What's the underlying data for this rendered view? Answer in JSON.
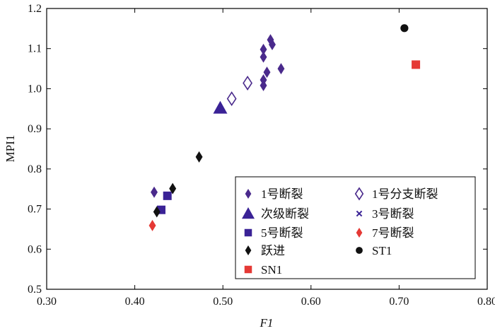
{
  "chart_data": {
    "type": "scatter",
    "xlabel": "F1",
    "ylabel": "MPI1",
    "xlim": [
      0.3,
      0.8
    ],
    "ylim": [
      0.5,
      1.2
    ],
    "xticks": [
      "0.30",
      "0.40",
      "0.50",
      "0.60",
      "0.70",
      "0.80"
    ],
    "yticks": [
      "0.5",
      "0.6",
      "0.7",
      "0.8",
      "0.9",
      "1.0",
      "1.1",
      "1.2"
    ],
    "xtick_values": [
      0.3,
      0.4,
      0.5,
      0.6,
      0.7,
      0.8
    ],
    "ytick_values": [
      0.5,
      0.6,
      0.7,
      0.8,
      0.9,
      1.0,
      1.1,
      1.2
    ],
    "grid": false,
    "legend_position": "bottom-right",
    "series": [
      {
        "name": "1号断裂",
        "marker": "diamond",
        "color": "#4a2a8c",
        "points": [
          [
            0.422,
            0.742
          ],
          [
            0.546,
            1.098
          ],
          [
            0.546,
            1.079
          ],
          [
            0.554,
            1.122
          ],
          [
            0.556,
            1.11
          ],
          [
            0.55,
            1.041
          ],
          [
            0.546,
            1.022
          ],
          [
            0.546,
            1.008
          ],
          [
            0.566,
            1.05
          ]
        ]
      },
      {
        "name": "1号分支断裂",
        "marker": "diamond-open",
        "color": "#4a2a8c",
        "points": [
          [
            0.51,
            0.975
          ],
          [
            0.528,
            1.014
          ]
        ]
      },
      {
        "name": "次级断裂",
        "marker": "triangle",
        "color": "#3a2296",
        "points": [
          [
            0.497,
            0.952
          ]
        ]
      },
      {
        "name": "3号断裂",
        "marker": "x",
        "color": "#3a2296",
        "points": []
      },
      {
        "name": "5号断裂",
        "marker": "square",
        "color": "#3a2296",
        "points": [
          [
            0.437,
            0.733
          ],
          [
            0.43,
            0.698
          ]
        ]
      },
      {
        "name": "7号断裂",
        "marker": "diamond",
        "color": "#e53935",
        "points": [
          [
            0.42,
            0.659
          ]
        ]
      },
      {
        "name": "跃进",
        "marker": "diamond",
        "color": "#111111",
        "points": [
          [
            0.473,
            0.83
          ],
          [
            0.443,
            0.751
          ],
          [
            0.425,
            0.693
          ]
        ]
      },
      {
        "name": "ST1",
        "marker": "circle",
        "color": "#111111",
        "points": [
          [
            0.706,
            1.151
          ]
        ]
      },
      {
        "name": "SN1",
        "marker": "square",
        "color": "#e53935",
        "points": [
          [
            0.719,
            1.06
          ]
        ]
      }
    ]
  }
}
